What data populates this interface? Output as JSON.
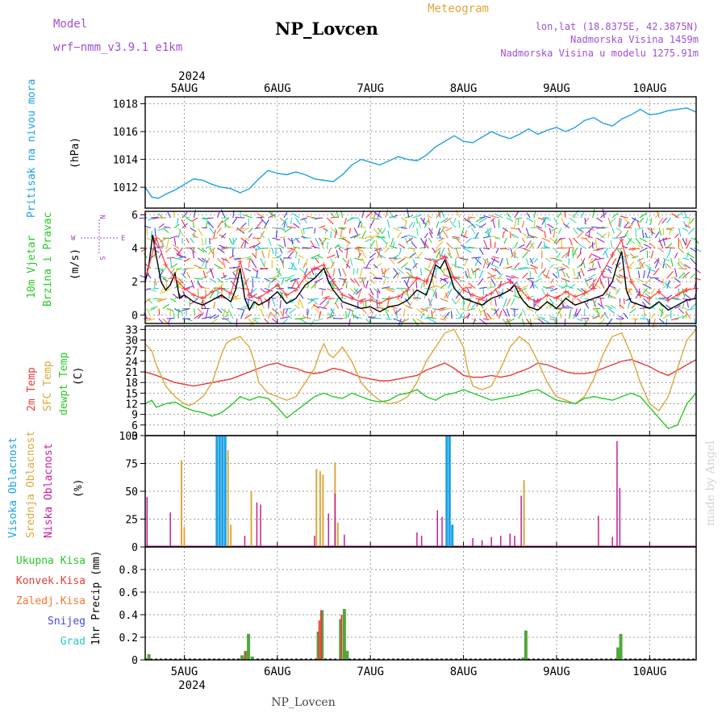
{
  "header": {
    "model_label": "Model",
    "model_name": "wrf−nmm_v3.9.1 e1km",
    "station": "NP_Lovcen",
    "meteogram": "Meteogram",
    "lonlat": "lon,lat (18.8375E, 42.3875N)",
    "altitude": "Nadmorska Visina 1459m",
    "model_altitude": "Nadmorska Visina u modelu 1275.91m",
    "watermark": "made by Angel",
    "footer_station": "NP_Lovcen"
  },
  "colors": {
    "pressure": "#1ea0e6",
    "wind_speed": "#000000",
    "wind_gust": "#ff4040",
    "temp_2m": "#e83c3c",
    "temp_sfc": "#dca83c",
    "dewpoint": "#28c828",
    "cloud_high": "#19a0e6",
    "cloud_mid": "#dca83c",
    "cloud_low": "#c81e96",
    "rain_total": "#4fa83a",
    "rain_conv": "#e83c3c",
    "rain_frz": "#f07832",
    "snow": "#4646e6",
    "hail": "#28c8c8"
  },
  "time_axis": {
    "year_label": "2024",
    "day_labels": [
      "5AUG",
      "6AUG",
      "7AUG",
      "8AUG",
      "9AUG",
      "10AUG"
    ],
    "start_day": 4.58,
    "end_day": 10.5
  },
  "panel_labels": {
    "pressure": [
      "Pritisak na nivou mora",
      "(hPa)"
    ],
    "wind": [
      "10m Vjetar",
      "Brzina i Pravac",
      "(m/s)"
    ],
    "compass": {
      "n": "N",
      "s": "S",
      "w": "W",
      "e": "E"
    },
    "temp": [
      "2m Temp",
      "SFC Temp",
      "dewpt Temp",
      "(C)"
    ],
    "cloud": [
      "Visoka Oblacnost",
      "Srednja Oblacnost",
      "Niska Oblacnost",
      "(%)"
    ],
    "precip_legend": [
      "Ukupna Kisa",
      "Konvek.Kisa",
      "Zaledj.Kisa",
      "Snijeg",
      "Grad"
    ],
    "precip_units": "1hr Precip (mm)"
  },
  "chart_data": [
    {
      "type": "line",
      "id": "pressure",
      "ylabel": "Pritisak na nivou mora (hPa)",
      "ylim": [
        1010.5,
        1018.5
      ],
      "yticks": [
        1012,
        1014,
        1016,
        1018
      ],
      "series": [
        {
          "name": "Pritisak na nivou mora",
          "x": [
            4.58,
            4.65,
            4.72,
            4.8,
            4.9,
            5.0,
            5.1,
            5.2,
            5.3,
            5.4,
            5.5,
            5.6,
            5.7,
            5.8,
            5.9,
            6.0,
            6.1,
            6.2,
            6.3,
            6.4,
            6.5,
            6.6,
            6.7,
            6.8,
            6.9,
            7.0,
            7.1,
            7.2,
            7.3,
            7.4,
            7.5,
            7.6,
            7.7,
            7.8,
            7.9,
            8.0,
            8.1,
            8.2,
            8.3,
            8.4,
            8.5,
            8.6,
            8.7,
            8.8,
            8.9,
            9.0,
            9.1,
            9.2,
            9.3,
            9.4,
            9.5,
            9.6,
            9.7,
            9.8,
            9.9,
            10.0,
            10.1,
            10.2,
            10.3,
            10.4,
            10.5
          ],
          "y": [
            1012.0,
            1011.3,
            1011.2,
            1011.5,
            1011.8,
            1012.2,
            1012.6,
            1012.5,
            1012.2,
            1012.0,
            1011.9,
            1011.6,
            1011.9,
            1012.6,
            1013.2,
            1013.0,
            1012.9,
            1013.1,
            1012.9,
            1012.6,
            1012.5,
            1012.4,
            1012.9,
            1013.6,
            1014.0,
            1013.8,
            1013.6,
            1013.9,
            1014.2,
            1014.0,
            1013.9,
            1014.3,
            1014.9,
            1015.3,
            1015.7,
            1015.3,
            1015.2,
            1015.6,
            1016.0,
            1015.7,
            1015.5,
            1015.8,
            1016.2,
            1015.8,
            1016.1,
            1016.3,
            1016.0,
            1016.3,
            1016.8,
            1017.0,
            1016.6,
            1016.4,
            1016.9,
            1017.2,
            1017.6,
            1017.2,
            1017.3,
            1017.5,
            1017.6,
            1017.7,
            1017.4
          ]
        }
      ]
    },
    {
      "type": "line",
      "id": "wind",
      "ylabel": "10m Vjetar Brzina i Pravac (m/s)",
      "ylim": [
        -0.5,
        6.2
      ],
      "yticks": [
        0,
        2,
        4,
        6
      ],
      "series": [
        {
          "name": "speed",
          "x": [
            4.58,
            4.62,
            4.66,
            4.7,
            4.75,
            4.8,
            4.85,
            4.9,
            4.95,
            5.0,
            5.1,
            5.2,
            5.3,
            5.4,
            5.5,
            5.55,
            5.6,
            5.65,
            5.7,
            5.75,
            5.8,
            5.9,
            6.0,
            6.1,
            6.2,
            6.3,
            6.4,
            6.45,
            6.5,
            6.55,
            6.6,
            6.7,
            6.8,
            6.9,
            7.0,
            7.1,
            7.2,
            7.3,
            7.4,
            7.5,
            7.6,
            7.65,
            7.7,
            7.75,
            7.8,
            7.85,
            7.9,
            8.0,
            8.1,
            8.2,
            8.3,
            8.4,
            8.5,
            8.55,
            8.6,
            8.65,
            8.7,
            8.8,
            8.9,
            9.0,
            9.1,
            9.2,
            9.3,
            9.4,
            9.5,
            9.6,
            9.65,
            9.7,
            9.75,
            9.8,
            9.9,
            10.0,
            10.1,
            10.2,
            10.3,
            10.4,
            10.5
          ],
          "y": [
            2.0,
            3.0,
            4.8,
            3.5,
            2.0,
            1.5,
            1.8,
            2.5,
            1.0,
            1.2,
            0.8,
            0.6,
            0.9,
            1.2,
            0.8,
            1.5,
            2.8,
            1.0,
            0.3,
            0.8,
            0.6,
            0.9,
            1.4,
            0.7,
            1.0,
            1.8,
            2.2,
            2.5,
            2.8,
            2.0,
            1.5,
            0.8,
            0.6,
            0.4,
            0.5,
            0.2,
            0.5,
            0.6,
            0.9,
            1.5,
            1.2,
            2.0,
            3.0,
            2.8,
            3.3,
            2.5,
            1.6,
            1.0,
            0.8,
            0.6,
            1.0,
            1.2,
            1.5,
            1.8,
            1.2,
            0.8,
            0.5,
            0.3,
            0.8,
            0.4,
            1.0,
            0.6,
            0.8,
            1.0,
            1.2,
            2.0,
            3.0,
            3.8,
            1.5,
            0.8,
            0.6,
            0.4,
            0.8,
            0.3,
            0.6,
            0.9,
            1.0
          ]
        },
        {
          "name": "gust",
          "x": [
            4.6,
            4.7,
            4.8,
            4.9,
            5.0,
            5.1,
            5.2,
            5.3,
            5.4,
            5.5,
            5.6,
            5.7,
            5.8,
            5.9,
            6.0,
            6.1,
            6.2,
            6.3,
            6.4,
            6.5,
            6.6,
            6.7,
            6.8,
            6.9,
            7.0,
            7.1,
            7.2,
            7.3,
            7.4,
            7.5,
            7.6,
            7.7,
            7.8,
            7.9,
            8.0,
            8.1,
            8.2,
            8.3,
            8.4,
            8.5,
            8.6,
            8.7,
            8.8,
            8.9,
            9.0,
            9.1,
            9.2,
            9.3,
            9.4,
            9.5,
            9.6,
            9.7,
            9.8,
            9.9,
            10.0,
            10.1,
            10.2,
            10.3,
            10.4,
            10.5
          ],
          "y": [
            2.5,
            4.6,
            3.0,
            2.2,
            1.6,
            1.2,
            1.0,
            1.4,
            1.6,
            1.3,
            3.2,
            1.2,
            1.0,
            1.4,
            1.8,
            1.2,
            1.5,
            2.3,
            2.8,
            3.0,
            2.0,
            1.2,
            1.0,
            0.8,
            0.9,
            0.7,
            1.0,
            1.1,
            1.5,
            2.2,
            2.0,
            3.2,
            3.5,
            2.2,
            1.5,
            1.2,
            1.0,
            1.3,
            1.8,
            2.0,
            1.6,
            1.0,
            0.8,
            1.2,
            1.0,
            1.4,
            1.1,
            1.3,
            1.6,
            2.6,
            3.6,
            4.5,
            2.0,
            1.2,
            1.0,
            1.4,
            0.9,
            1.2,
            1.5,
            1.6
          ]
        }
      ]
    },
    {
      "type": "line",
      "id": "temperature",
      "ylabel": "(C)",
      "ylim": [
        3,
        34
      ],
      "yticks": [
        3,
        6,
        9,
        12,
        15,
        18,
        21,
        24,
        27,
        30,
        33
      ],
      "series": [
        {
          "name": "2m Temp",
          "x": [
            4.58,
            4.7,
            4.8,
            4.9,
            5.0,
            5.1,
            5.2,
            5.3,
            5.4,
            5.5,
            5.6,
            5.7,
            5.8,
            5.9,
            6.0,
            6.1,
            6.2,
            6.3,
            6.4,
            6.5,
            6.6,
            6.7,
            6.8,
            6.9,
            7.0,
            7.1,
            7.2,
            7.3,
            7.4,
            7.5,
            7.6,
            7.7,
            7.8,
            7.9,
            8.0,
            8.1,
            8.2,
            8.3,
            8.4,
            8.5,
            8.6,
            8.7,
            8.8,
            8.9,
            9.0,
            9.1,
            9.2,
            9.3,
            9.4,
            9.5,
            9.6,
            9.7,
            9.8,
            9.9,
            10.0,
            10.1,
            10.2,
            10.3,
            10.4,
            10.5
          ],
          "y": [
            21,
            20,
            19,
            18,
            17.5,
            17,
            17.5,
            18,
            18.5,
            19,
            20,
            21,
            22,
            23,
            23.5,
            22.5,
            22,
            21,
            20.5,
            21,
            22,
            21.5,
            20.5,
            19.5,
            19,
            18.5,
            18.5,
            19,
            19.5,
            20,
            21.5,
            22.5,
            23.5,
            22,
            20,
            19.5,
            19.5,
            20,
            19.5,
            20,
            21,
            22,
            23.5,
            23,
            22,
            21,
            20.5,
            20.5,
            21,
            22,
            23,
            24,
            24.5,
            23.5,
            22.5,
            21,
            20,
            21.5,
            23,
            24.5
          ]
        },
        {
          "name": "SFC Temp",
          "x": [
            4.58,
            4.65,
            4.7,
            4.8,
            4.9,
            5.0,
            5.05,
            5.1,
            5.2,
            5.3,
            5.4,
            5.45,
            5.5,
            5.6,
            5.7,
            5.75,
            5.8,
            5.9,
            6.0,
            6.1,
            6.2,
            6.3,
            6.4,
            6.45,
            6.5,
            6.55,
            6.6,
            6.7,
            6.8,
            6.9,
            7.0,
            7.1,
            7.2,
            7.3,
            7.4,
            7.5,
            7.6,
            7.7,
            7.8,
            7.9,
            8.0,
            8.05,
            8.1,
            8.2,
            8.3,
            8.4,
            8.5,
            8.6,
            8.7,
            8.8,
            8.9,
            9.0,
            9.1,
            9.2,
            9.3,
            9.4,
            9.5,
            9.6,
            9.7,
            9.8,
            9.9,
            10.0,
            10.1,
            10.2,
            10.3,
            10.4,
            10.5
          ],
          "y": [
            29,
            27,
            23,
            17,
            14,
            12,
            11.5,
            12,
            14,
            18,
            26,
            29,
            30,
            31,
            28,
            24,
            18,
            15,
            14,
            13,
            14,
            18,
            22,
            26,
            29,
            26,
            25,
            28,
            24,
            18,
            15,
            13,
            12,
            12.5,
            14,
            18,
            24,
            28,
            32,
            33,
            28,
            21,
            17,
            16,
            17,
            22,
            28,
            31,
            29,
            24,
            18,
            14,
            13,
            12,
            14,
            19,
            26,
            31,
            32,
            26,
            18,
            12,
            10,
            14,
            22,
            30,
            33
          ]
        },
        {
          "name": "dewpt Temp",
          "x": [
            4.58,
            4.65,
            4.7,
            4.8,
            4.9,
            5.0,
            5.1,
            5.2,
            5.3,
            5.4,
            5.5,
            5.6,
            5.7,
            5.8,
            5.9,
            6.0,
            6.1,
            6.2,
            6.3,
            6.4,
            6.5,
            6.6,
            6.7,
            6.8,
            6.9,
            7.0,
            7.1,
            7.2,
            7.3,
            7.4,
            7.5,
            7.6,
            7.7,
            7.8,
            7.9,
            8.0,
            8.1,
            8.2,
            8.3,
            8.4,
            8.5,
            8.6,
            8.7,
            8.8,
            8.9,
            9.0,
            9.1,
            9.2,
            9.3,
            9.4,
            9.5,
            9.6,
            9.7,
            9.8,
            9.9,
            10.0,
            10.1,
            10.2,
            10.3,
            10.4,
            10.5
          ],
          "y": [
            12,
            13,
            11,
            12,
            12.5,
            11,
            10,
            9.5,
            8.5,
            9.5,
            11.5,
            14,
            13,
            14,
            13.5,
            11,
            8,
            10,
            12,
            14,
            15,
            14,
            13.5,
            15,
            14,
            13,
            12.5,
            13,
            14.5,
            15,
            16,
            14,
            13,
            14.5,
            15,
            16,
            15,
            14,
            13,
            13.5,
            14,
            14.5,
            15.5,
            16,
            14.5,
            13,
            12.5,
            12,
            13.5,
            14,
            13.5,
            13,
            14,
            15,
            14,
            11,
            8,
            5,
            6,
            12,
            15
          ]
        }
      ]
    },
    {
      "type": "bar",
      "id": "cloud",
      "ylabel": "(%)",
      "ylim": [
        0,
        100
      ],
      "yticks": [
        0,
        25,
        50,
        75,
        100
      ],
      "series": [
        {
          "name": "Visoka Oblacnost",
          "x": [
            5.35,
            5.38,
            5.41,
            5.44,
            7.82,
            7.85,
            7.88
          ],
          "values": [
            100,
            100,
            100,
            100,
            100,
            100,
            20
          ]
        },
        {
          "name": "Srednja Oblacnost",
          "x": [
            4.97,
            5.0,
            5.47,
            5.5,
            5.72,
            6.42,
            6.46,
            6.49,
            6.62,
            6.65,
            8.65
          ],
          "values": [
            78,
            18,
            87,
            20,
            50,
            70,
            68,
            65,
            76,
            22,
            60
          ]
        },
        {
          "name": "Niska Oblacnost",
          "x": [
            4.6,
            4.85,
            5.65,
            5.78,
            5.82,
            6.4,
            6.55,
            6.62,
            6.72,
            7.5,
            7.55,
            7.72,
            7.77,
            8.1,
            8.2,
            8.3,
            8.4,
            8.5,
            8.55,
            8.62,
            9.45,
            9.6,
            9.65,
            9.68
          ],
          "values": [
            45,
            31,
            10,
            40,
            38,
            10,
            30,
            48,
            11,
            13,
            10,
            33,
            27,
            8,
            6,
            9,
            10,
            12,
            10,
            46,
            28,
            9,
            95,
            53
          ]
        }
      ]
    },
    {
      "type": "bar",
      "id": "precip",
      "ylabel": "1hr Precip (mm)",
      "ylim": [
        0,
        1.0
      ],
      "yticks": [
        0,
        0.2,
        0.4,
        0.6,
        0.8
      ],
      "series": [
        {
          "name": "Ukupna Kisa",
          "x": [
            4.62,
            5.62,
            5.66,
            5.69,
            5.73,
            6.44,
            6.48,
            6.68,
            6.72,
            6.75,
            8.64,
            8.67,
            9.66,
            9.69
          ],
          "values": [
            0.05,
            0.04,
            0.08,
            0.23,
            0.03,
            0.25,
            0.44,
            0.36,
            0.45,
            0.08,
            0.02,
            0.26,
            0.11,
            0.23
          ]
        },
        {
          "name": "Konvek.Kisa",
          "x": [
            5.65,
            6.45,
            6.47,
            6.69
          ],
          "values": [
            0.07,
            0.35,
            0.44,
            0.4
          ]
        },
        {
          "name": "Zaledj.Kisa",
          "x": [],
          "values": []
        },
        {
          "name": "Snijeg",
          "x": [],
          "values": []
        },
        {
          "name": "Grad",
          "x": [],
          "values": []
        }
      ]
    }
  ]
}
